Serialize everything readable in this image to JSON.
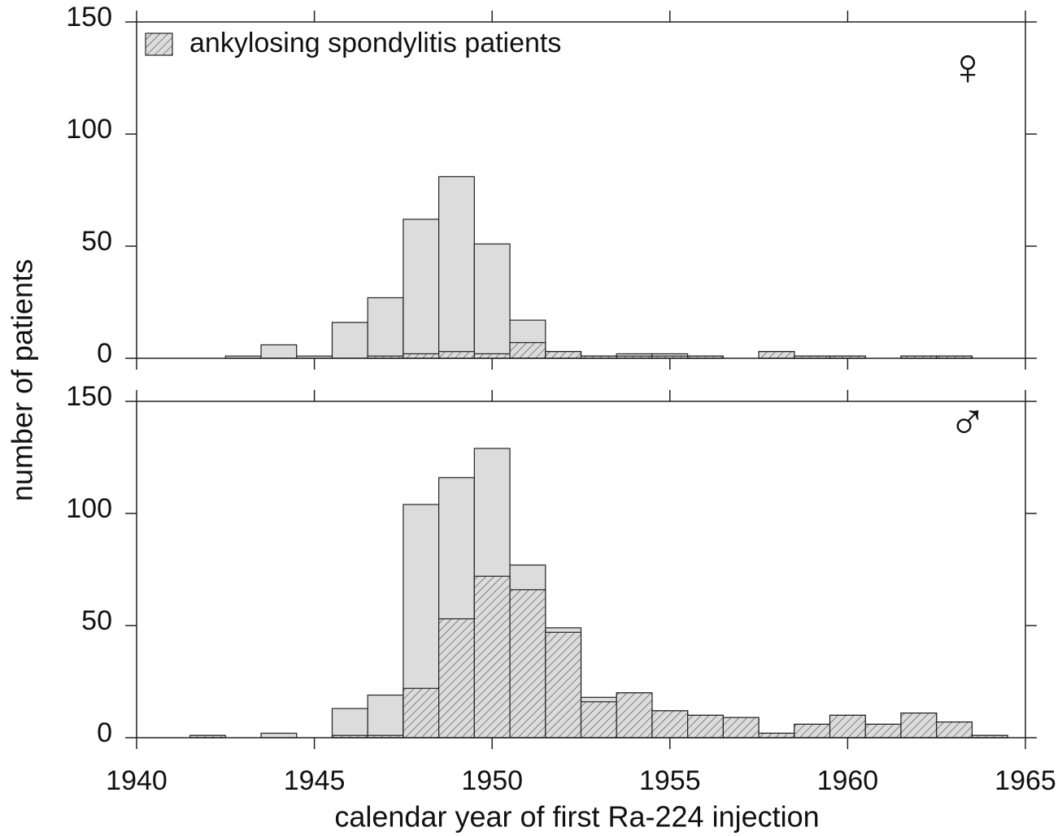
{
  "chart_data": [
    {
      "type": "histogram",
      "ylabel": "number of patients",
      "annotation": "♀",
      "bins": [
        1940.5,
        1941.5,
        1942.5,
        1943.5,
        1944.5,
        1945.5,
        1946.5,
        1947.5,
        1948.5,
        1949.5,
        1950.5,
        1951.5,
        1952.5,
        1953.5,
        1954.5,
        1955.5,
        1956.5,
        1957.5,
        1958.5,
        1959.5,
        1960.5,
        1961.5,
        1962.5,
        1963.5,
        1964.5
      ],
      "series": [
        {
          "color": "#dcdcdc",
          "values": [
            0,
            0,
            1,
            6,
            1,
            16,
            27,
            62,
            81,
            51,
            17,
            3,
            1,
            2,
            2,
            1,
            0,
            3,
            1,
            1,
            0,
            1,
            1,
            0
          ]
        },
        {
          "name": "ankylosing spondylitis patients",
          "color": "#dcdcdc",
          "hatch": true,
          "values": [
            0,
            0,
            0,
            0,
            0,
            0,
            1,
            2,
            3,
            2,
            7,
            3,
            1,
            1,
            1,
            1,
            0,
            3,
            1,
            1,
            0,
            1,
            1,
            0
          ]
        }
      ],
      "xlim": [
        1940,
        1965
      ],
      "ylim": [
        0,
        150
      ],
      "yticks": [
        0,
        50,
        100,
        150
      ],
      "legend": "upper left"
    },
    {
      "type": "histogram",
      "xlabel": "calendar year of first Ra-224 injection",
      "annotation": "♂",
      "bins": [
        1940.5,
        1941.5,
        1942.5,
        1943.5,
        1944.5,
        1945.5,
        1946.5,
        1947.5,
        1948.5,
        1949.5,
        1950.5,
        1951.5,
        1952.5,
        1953.5,
        1954.5,
        1955.5,
        1956.5,
        1957.5,
        1958.5,
        1959.5,
        1960.5,
        1961.5,
        1962.5,
        1963.5,
        1964.5
      ],
      "series": [
        {
          "color": "#dcdcdc",
          "values": [
            0,
            1,
            0,
            2,
            0,
            13,
            19,
            104,
            116,
            129,
            77,
            49,
            18,
            20,
            12,
            10,
            9,
            2,
            6,
            10,
            6,
            11,
            7,
            1
          ]
        },
        {
          "name": "ankylosing spondylitis patients",
          "color": "#dcdcdc",
          "hatch": true,
          "values": [
            0,
            1,
            0,
            0,
            0,
            1,
            1,
            22,
            53,
            72,
            66,
            47,
            16,
            20,
            12,
            10,
            9,
            2,
            6,
            10,
            6,
            11,
            7,
            1
          ]
        }
      ],
      "xlim": [
        1940,
        1965
      ],
      "xticks": [
        1940,
        1945,
        1950,
        1955,
        1960,
        1965
      ],
      "ylim": [
        0,
        150
      ],
      "yticks": [
        0,
        50,
        100,
        150
      ]
    }
  ]
}
